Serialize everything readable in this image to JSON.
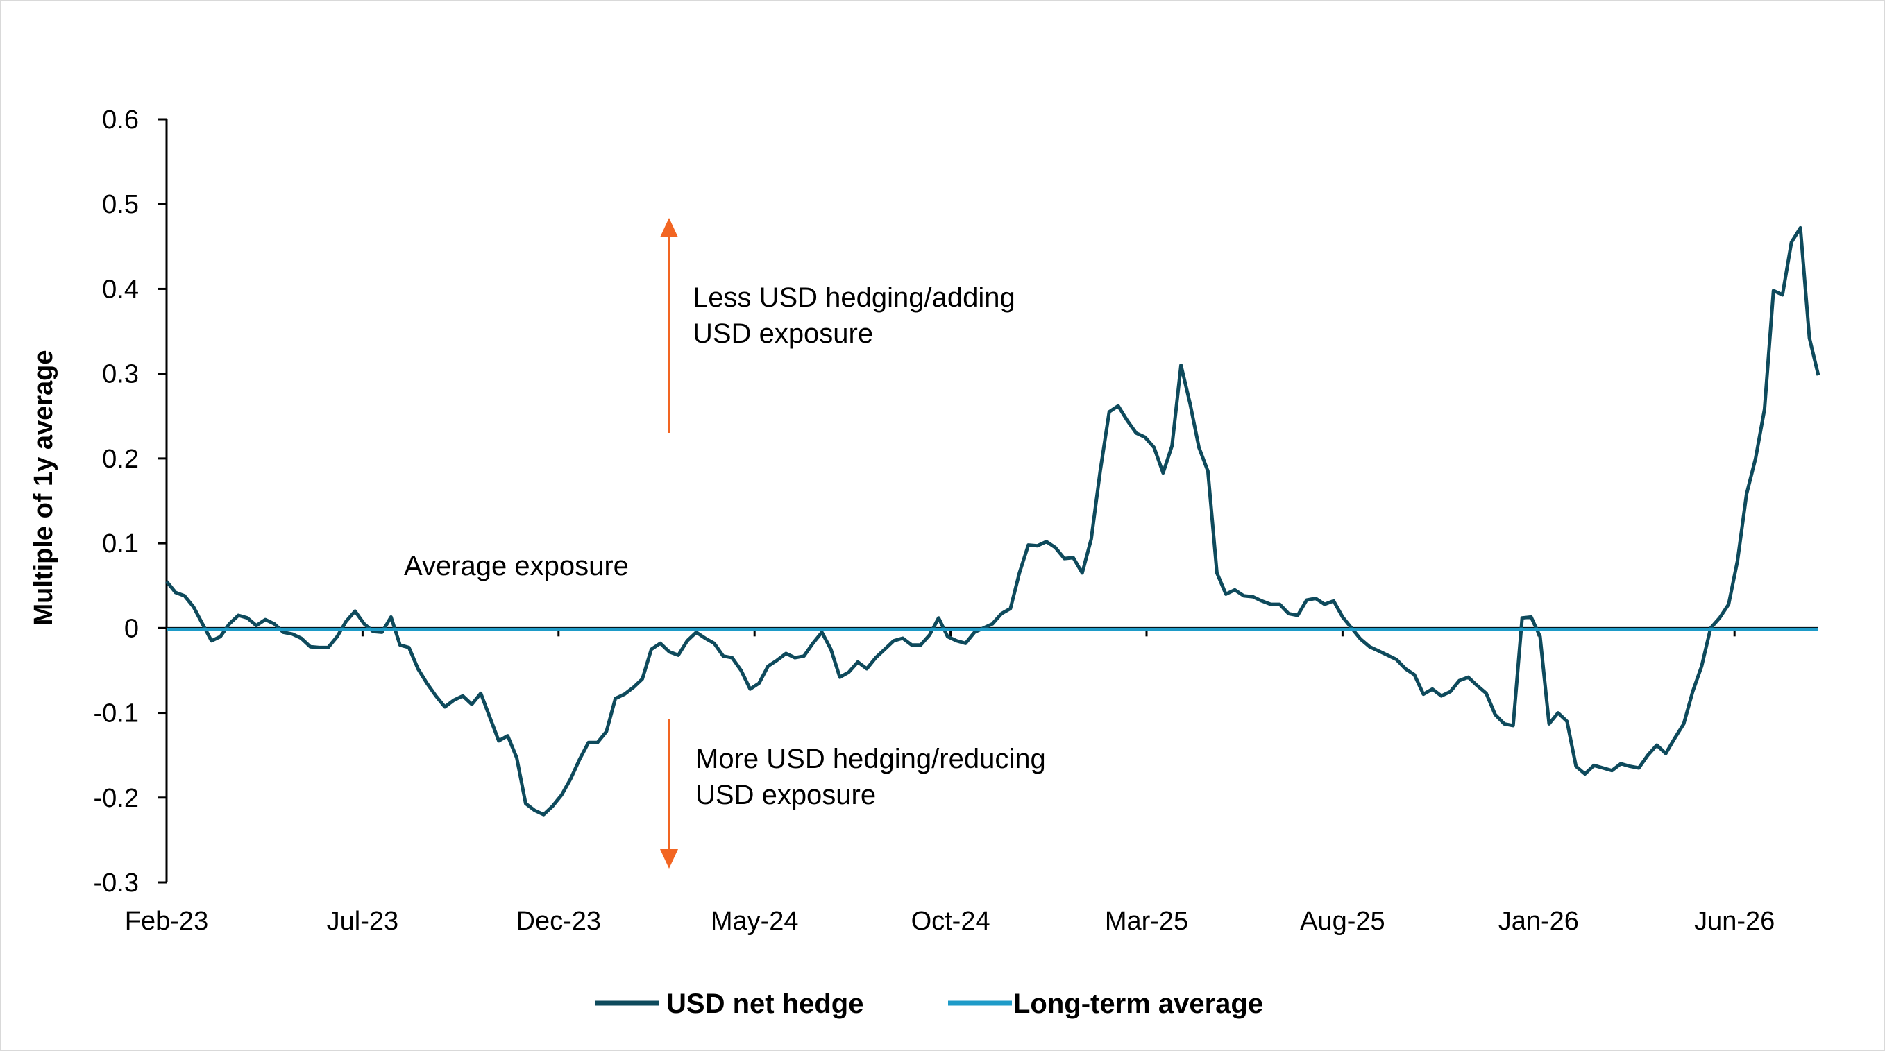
{
  "chart_data": {
    "type": "line",
    "ylabel": "Multiple of 1y average",
    "xlabel": "",
    "ylim": [
      -0.3,
      0.6
    ],
    "yticks": [
      0.6,
      0.5,
      0.4,
      0.3,
      0.2,
      0.1,
      0,
      -0.1,
      -0.2,
      -0.3
    ],
    "ytick_labels": [
      "0.6",
      "0.5",
      "0.4",
      "0.3",
      "0.2",
      "0.1",
      "0",
      "-0.1",
      "-0.2",
      "-0.3"
    ],
    "x_start": "2023-02",
    "x_end": "2026-09",
    "xtick_labels": [
      "Feb-23",
      "Jul-23",
      "Dec-23",
      "May-24",
      "Oct-24",
      "Mar-25",
      "Aug-25",
      "Jan-26",
      "Jun-26"
    ],
    "grid": false,
    "legend_position": "bottom",
    "series": [
      {
        "name": "USD net hedge",
        "color": "#0e4a5c",
        "values": [
          0.055,
          0.042,
          0.038,
          0.025,
          0.005,
          -0.015,
          -0.01,
          0.005,
          0.015,
          0.012,
          0.003,
          0.01,
          0.005,
          -0.005,
          -0.007,
          -0.012,
          -0.022,
          -0.023,
          -0.023,
          -0.01,
          0.008,
          0.02,
          0.005,
          -0.004,
          -0.005,
          0.013,
          -0.02,
          -0.023,
          -0.048,
          -0.065,
          -0.08,
          -0.093,
          -0.085,
          -0.08,
          -0.09,
          -0.077,
          -0.105,
          -0.133,
          -0.127,
          -0.153,
          -0.207,
          -0.215,
          -0.22,
          -0.21,
          -0.197,
          -0.178,
          -0.155,
          -0.135,
          -0.135,
          -0.122,
          -0.083,
          -0.078,
          -0.07,
          -0.06,
          -0.025,
          -0.018,
          -0.028,
          -0.032,
          -0.015,
          -0.005,
          -0.012,
          -0.018,
          -0.033,
          -0.035,
          -0.05,
          -0.072,
          -0.065,
          -0.045,
          -0.038,
          -0.03,
          -0.035,
          -0.033,
          -0.018,
          -0.005,
          -0.025,
          -0.058,
          -0.052,
          -0.04,
          -0.048,
          -0.035,
          -0.025,
          -0.015,
          -0.012,
          -0.02,
          -0.02,
          -0.008,
          0.012,
          -0.01,
          -0.015,
          -0.018,
          -0.005,
          0.0,
          0.005,
          0.017,
          0.023,
          0.065,
          0.098,
          0.097,
          0.102,
          0.095,
          0.082,
          0.083,
          0.065,
          0.105,
          0.185,
          0.255,
          0.262,
          0.245,
          0.23,
          0.225,
          0.213,
          0.183,
          0.215,
          0.31,
          0.265,
          0.213,
          0.185,
          0.065,
          0.04,
          0.045,
          0.038,
          0.037,
          0.032,
          0.028,
          0.028,
          0.017,
          0.015,
          0.033,
          0.035,
          0.028,
          0.032,
          0.013,
          0.0,
          -0.013,
          -0.022,
          -0.027,
          -0.032,
          -0.037,
          -0.048,
          -0.055,
          -0.078,
          -0.072,
          -0.08,
          -0.075,
          -0.062,
          -0.058,
          -0.068,
          -0.077,
          -0.102,
          -0.113,
          -0.115,
          0.012,
          0.013,
          -0.01,
          -0.113,
          -0.1,
          -0.11,
          -0.163,
          -0.172,
          -0.162,
          -0.165,
          -0.168,
          -0.16,
          -0.163,
          -0.165,
          -0.15,
          -0.138,
          -0.148,
          -0.13,
          -0.113,
          -0.075,
          -0.045,
          0.0,
          0.012,
          0.028,
          0.08,
          0.158,
          0.2,
          0.258,
          0.398,
          0.393,
          0.455,
          0.472,
          0.342,
          0.298
        ]
      },
      {
        "name": "Long-term average",
        "color": "#1e9bc8",
        "values": [
          0,
          0
        ]
      }
    ],
    "annotations": [
      {
        "lines": [
          "Less USD hedging/adding",
          "USD exposure"
        ],
        "arrow": "up",
        "arrow_color": "#f26522"
      },
      {
        "lines": [
          "Average exposure"
        ]
      },
      {
        "lines": [
          "More USD hedging/reducing",
          "USD exposure"
        ],
        "arrow": "down",
        "arrow_color": "#f26522"
      }
    ]
  }
}
